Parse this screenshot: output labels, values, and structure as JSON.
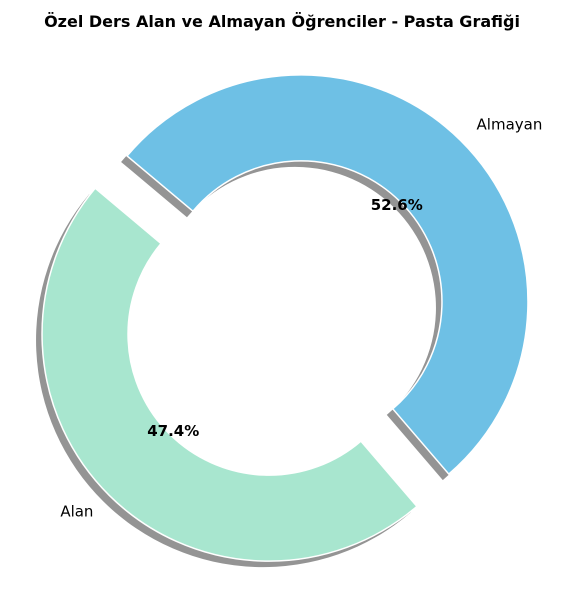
{
  "chart_data": {
    "type": "pie",
    "style": "donut",
    "title": "Özel Ders Alan ve Almayan Öğrenciler - Pasta Grafiği",
    "slices": [
      {
        "label": "Alan",
        "value": 47.4,
        "percent_label": "47.4%",
        "color": "#a8e6cf",
        "exploded": true
      },
      {
        "label": "Almayan",
        "value": 52.6,
        "percent_label": "52.6%",
        "color": "#6ec0e5",
        "exploded": true
      }
    ],
    "shadow": true,
    "edge_color": "#ffffff"
  }
}
